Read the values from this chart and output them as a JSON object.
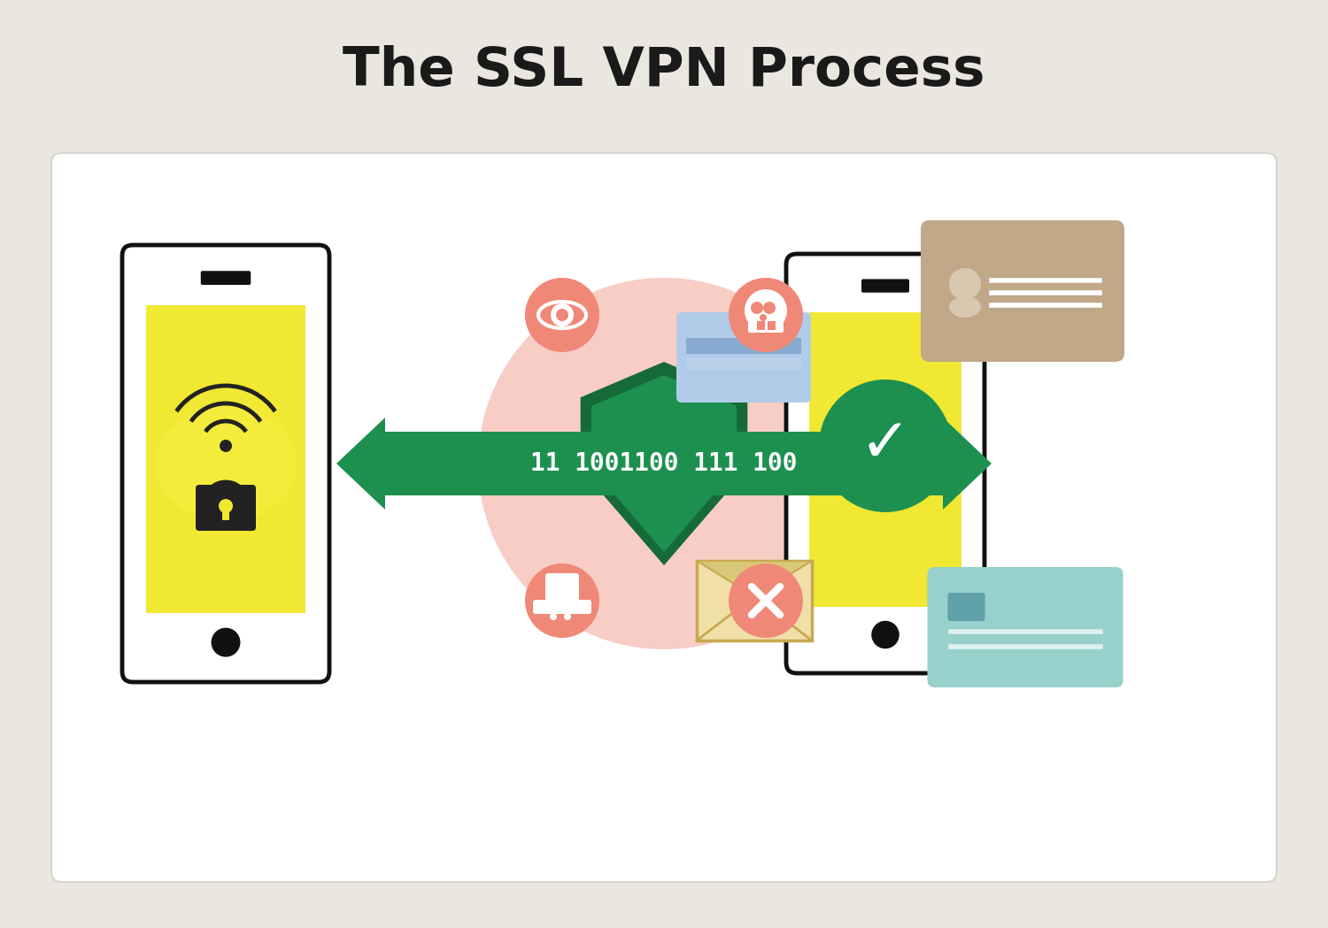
{
  "title": "The SSL VPN Process",
  "title_fontsize": 44,
  "title_fontweight": "bold",
  "title_color": "#1a1a1a",
  "bg_color": "#eae6e0",
  "card_color": "#ffffff",
  "phone_screen_yellow": "#f0e832",
  "phone_outline_color": "#111111",
  "shield_color_dark": "#156a38",
  "shield_color_light": "#1d9050",
  "arrow_color": "#1d9050",
  "binary_text": "11 1001100 111 100",
  "binary_color": "#ffffff",
  "threat_blob_color": "#f5b8ae",
  "threat_icon_bg": "#f08878",
  "green_circle_color": "#1d9050",
  "card_blue_color": "#b0cce8",
  "card_teal_color": "#98d0cc",
  "card_beige_color": "#c0a888",
  "envelope_bg": "#f0e0a8",
  "envelope_line": "#c8a850",
  "white": "#ffffff"
}
